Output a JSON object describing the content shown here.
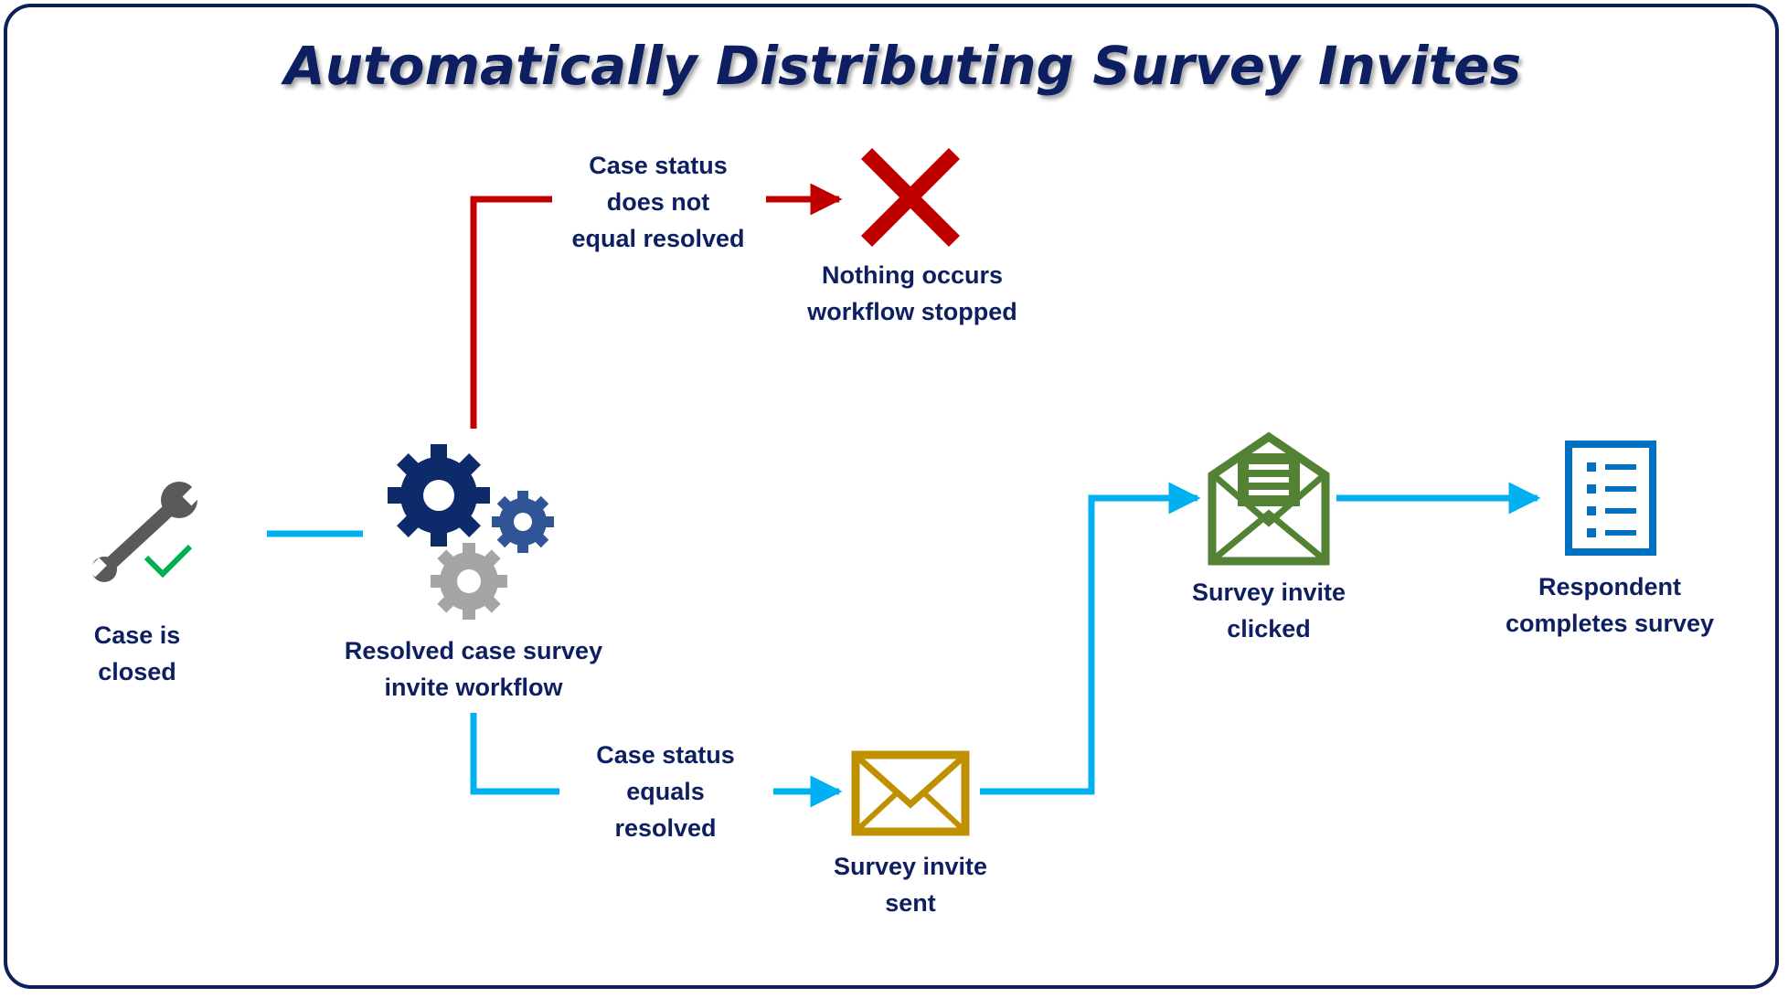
{
  "title": "Automatically Distributing Survey Invites",
  "nodes": {
    "case_closed": {
      "label": "Case is\nclosed",
      "icon": "wrench-check-icon"
    },
    "workflow": {
      "label": "Resolved case survey\ninvite workflow",
      "icon": "gears-icon"
    },
    "nothing": {
      "label": "Nothing occurs\nworkflow stopped",
      "icon": "red-x-icon"
    },
    "invite_sent": {
      "label": "Survey invite\nsent",
      "icon": "envelope-icon"
    },
    "invite_clicked": {
      "label": "Survey invite\nclicked",
      "icon": "open-envelope-icon"
    },
    "completes": {
      "label": "Respondent\ncompletes survey",
      "icon": "survey-list-icon"
    }
  },
  "conditions": {
    "not_resolved": "Case status\ndoes not\nequal resolved",
    "resolved": "Case status\nequals\nresolved"
  },
  "colors": {
    "title": "#0d1f60",
    "frame": "#0e1f5b",
    "stop_path": "#c00000",
    "success_path": "#00b0f0",
    "gear_dark": "#0d2a6a",
    "gear_mid": "#2f5597",
    "gear_light": "#a5a5a5",
    "envelope_sent": "#bf9000",
    "envelope_clicked": "#548235",
    "survey_doc": "#0070c0",
    "check": "#00b050"
  }
}
